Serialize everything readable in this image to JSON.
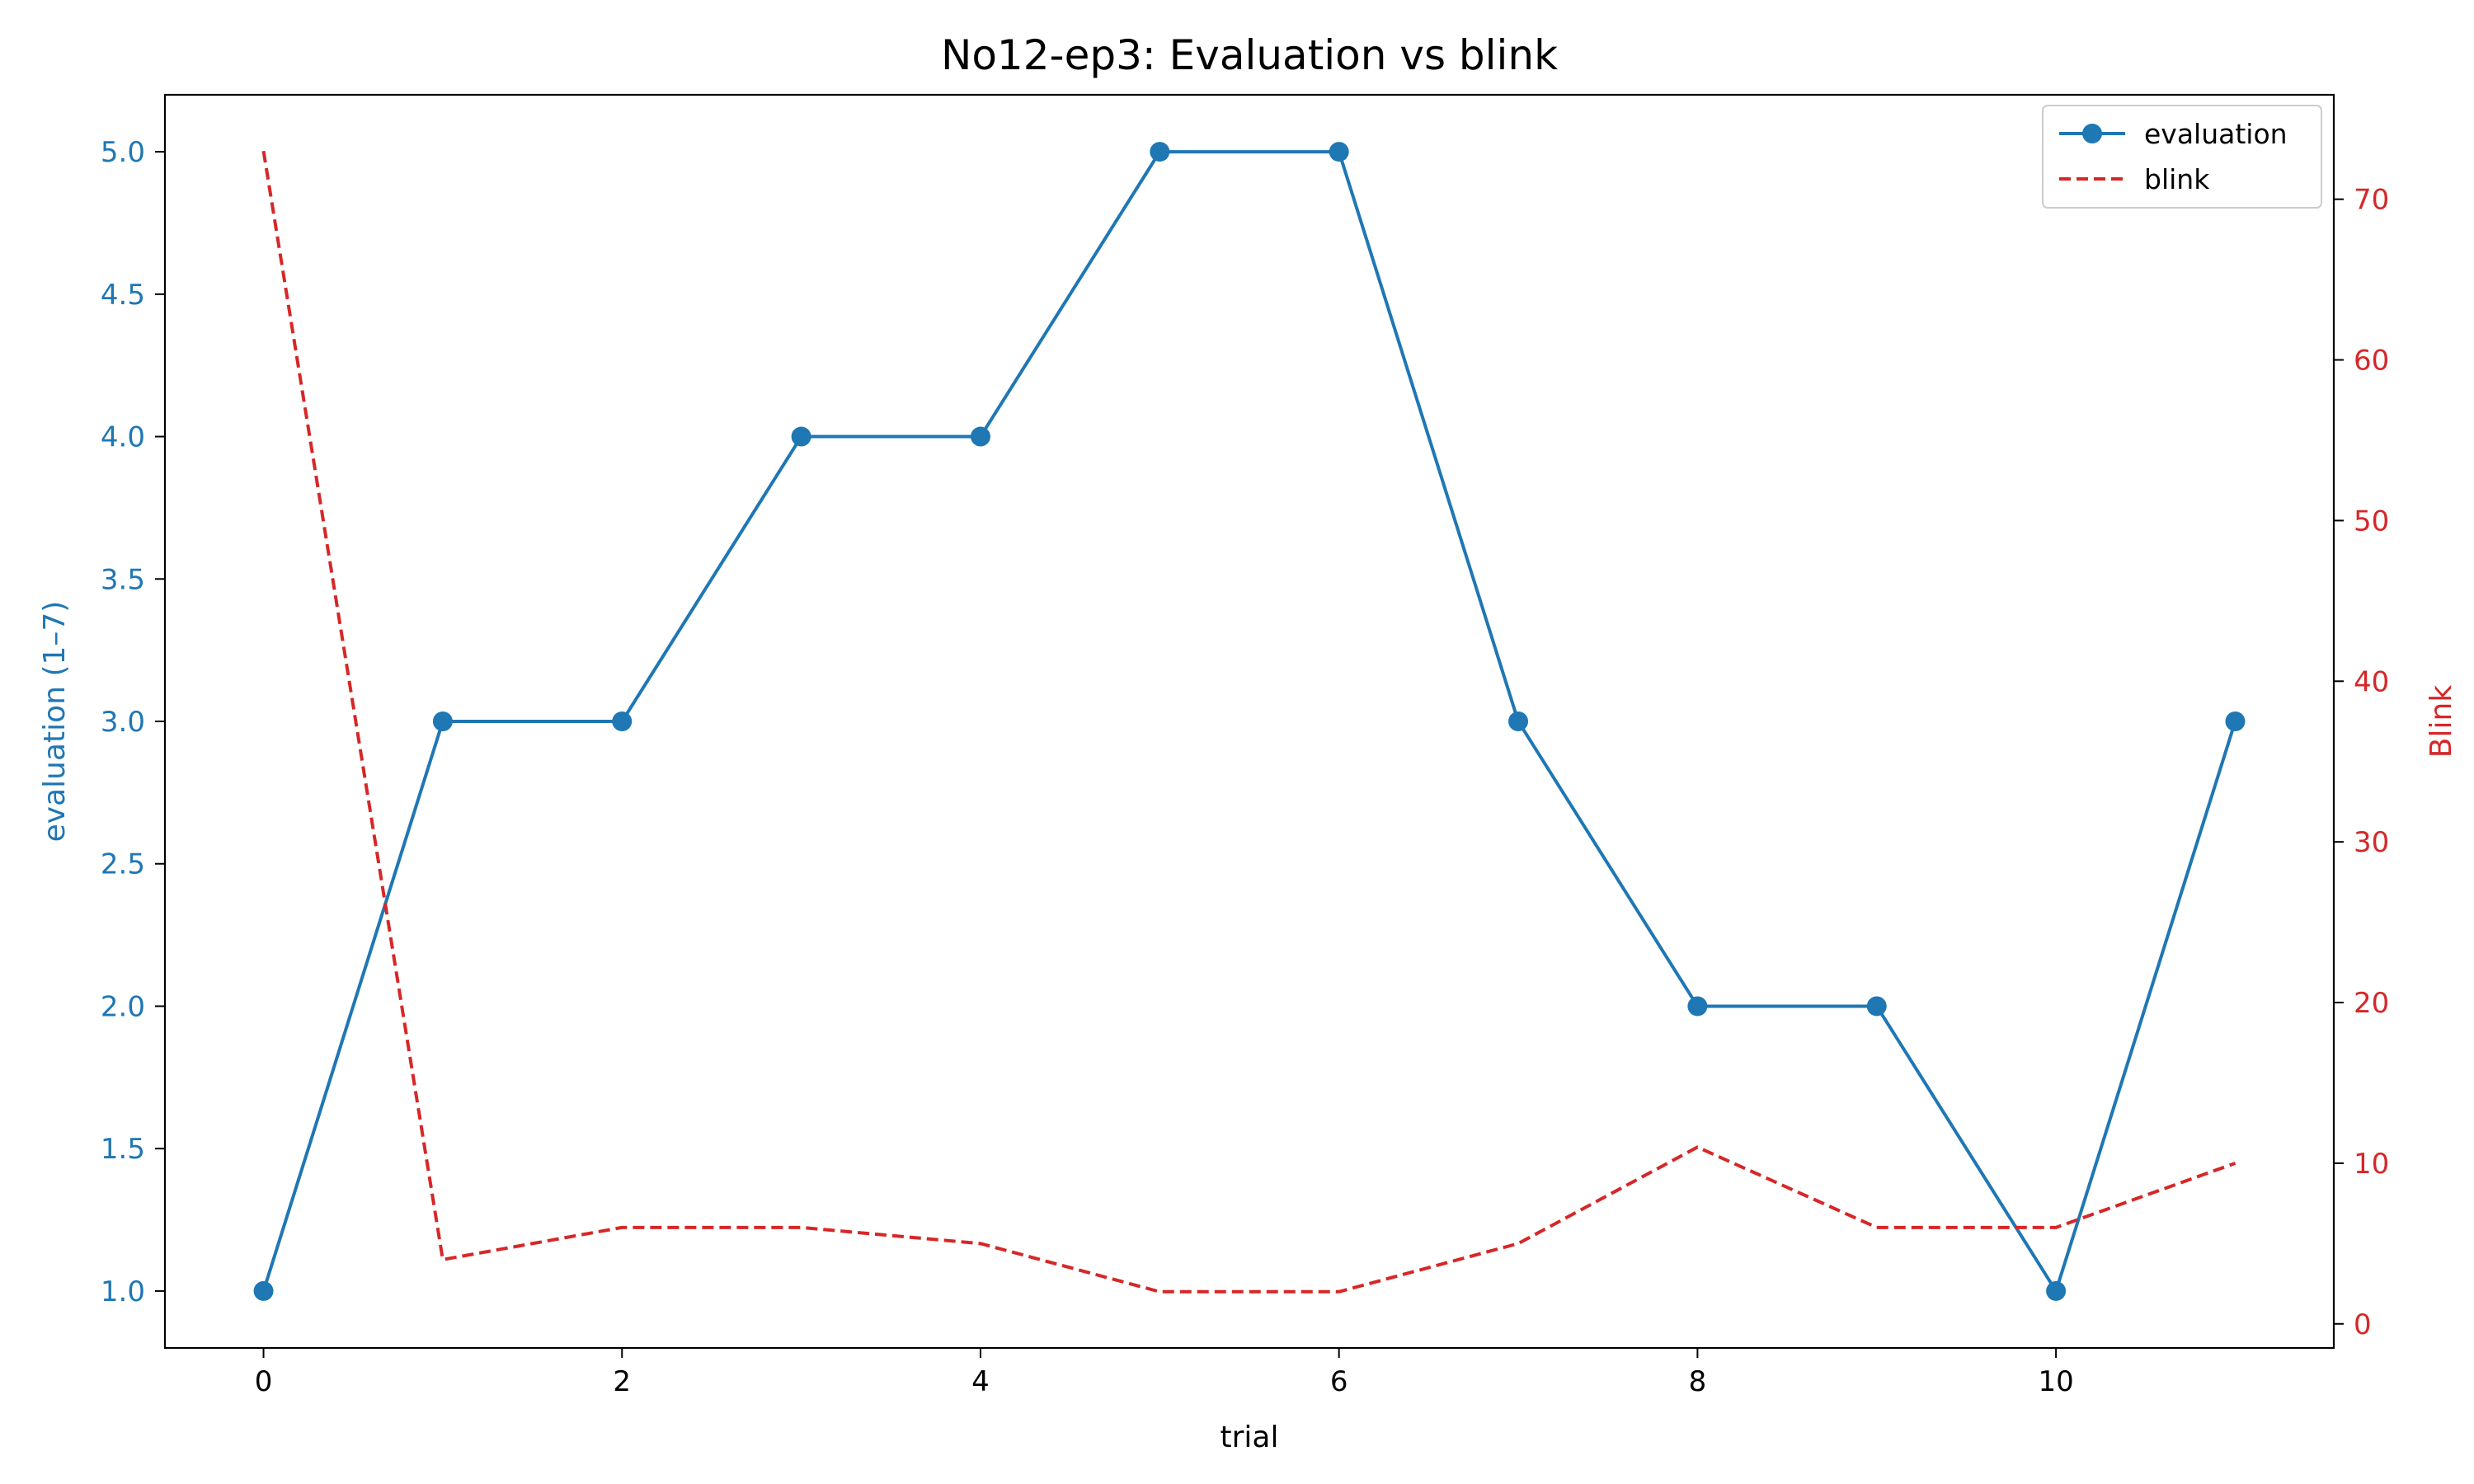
{
  "chart_data": {
    "type": "line",
    "title": "No12-ep3: Evaluation vs blink",
    "xlabel": "trial",
    "ylabel_left": "evaluation (1–7)",
    "ylabel_right": "Blink",
    "x": [
      0,
      1,
      2,
      3,
      4,
      5,
      6,
      7,
      8,
      9,
      10,
      11
    ],
    "xlim": [
      -0.55,
      11.55
    ],
    "xticks": [
      "0",
      "2",
      "4",
      "6",
      "8",
      "10"
    ],
    "ylim_left": [
      0.8,
      5.2
    ],
    "yticks_left": [
      "1.0",
      "1.5",
      "2.0",
      "2.5",
      "3.0",
      "3.5",
      "4.0",
      "4.5",
      "5.0"
    ],
    "ylim_right": [
      -1.5,
      76.5
    ],
    "yticks_right": [
      "0",
      "10",
      "20",
      "30",
      "40",
      "50",
      "60",
      "70"
    ],
    "series": [
      {
        "name": "evaluation",
        "axis": "left",
        "color": "#1f77b4",
        "style": "solid-with-markers",
        "values": [
          1,
          3,
          3,
          4,
          4,
          5,
          5,
          3,
          2,
          2,
          1,
          3
        ]
      },
      {
        "name": "blink",
        "axis": "right",
        "color": "#d62728",
        "style": "dashed",
        "values": [
          73,
          4,
          6,
          6,
          5,
          2,
          2,
          5,
          11,
          6,
          6,
          10
        ]
      }
    ],
    "legend": {
      "position": "top-right"
    },
    "grid": false
  }
}
